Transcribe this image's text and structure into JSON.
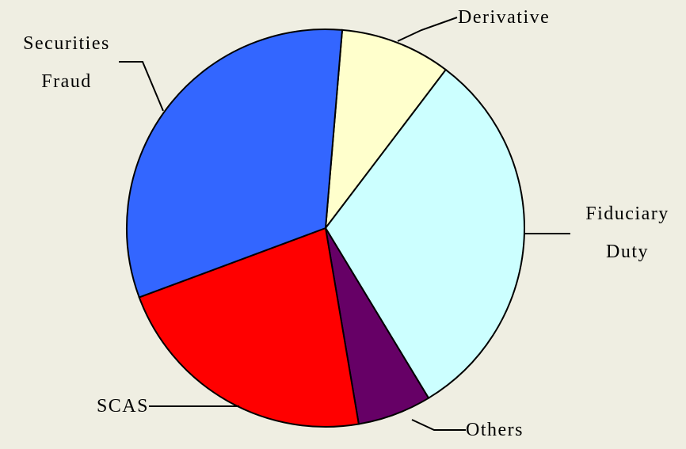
{
  "chart_data": {
    "type": "pie",
    "categories": [
      "Derivative",
      "Fiduciary Duty",
      "Others",
      "SCAS",
      "Securities Fraud"
    ],
    "values": [
      9,
      31,
      6,
      22,
      32
    ],
    "colors": [
      "#ffffcc",
      "#ccffff",
      "#660066",
      "#ff0000",
      "#3366ff"
    ]
  }
}
